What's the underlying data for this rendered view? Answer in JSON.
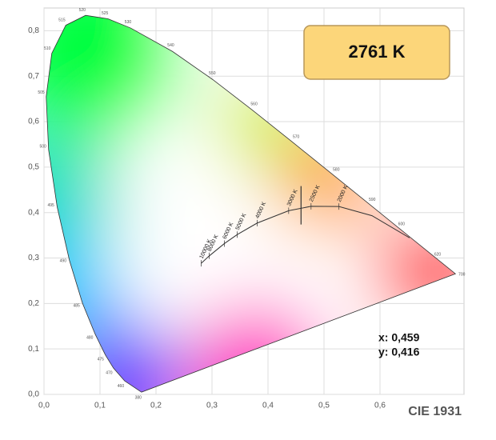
{
  "chart_data": {
    "type": "chromaticity",
    "title": "CIE 1931",
    "xlim": [
      0,
      0.75
    ],
    "ylim": [
      0,
      0.85
    ],
    "xticks": [
      {
        "value": 0,
        "label": "0,0"
      },
      {
        "value": 0.1,
        "label": "0,1"
      },
      {
        "value": 0.2,
        "label": "0,2"
      },
      {
        "value": 0.3,
        "label": "0,3"
      },
      {
        "value": 0.4,
        "label": "0,4"
      },
      {
        "value": 0.5,
        "label": "0,5"
      },
      {
        "value": 0.6,
        "label": "0,6"
      }
    ],
    "yticks": [
      {
        "value": 0,
        "label": "0,0"
      },
      {
        "value": 0.1,
        "label": "0,1"
      },
      {
        "value": 0.2,
        "label": "0,2"
      },
      {
        "value": 0.3,
        "label": "0,3"
      },
      {
        "value": 0.4,
        "label": "0,4"
      },
      {
        "value": 0.5,
        "label": "0,5"
      },
      {
        "value": 0.6,
        "label": "0,6"
      },
      {
        "value": 0.7,
        "label": "0,7"
      },
      {
        "value": 0.8,
        "label": "0,8"
      }
    ],
    "grid": true,
    "locus": {
      "nm": [
        380,
        460,
        470,
        475,
        480,
        485,
        490,
        495,
        500,
        505,
        510,
        515,
        520,
        525,
        530,
        540,
        550,
        560,
        570,
        580,
        590,
        600,
        620,
        700
      ],
      "x": [
        0.1741,
        0.144,
        0.1241,
        0.1096,
        0.0913,
        0.0687,
        0.0454,
        0.0235,
        0.0082,
        0.0039,
        0.0139,
        0.0389,
        0.0743,
        0.1142,
        0.1547,
        0.2296,
        0.3016,
        0.3731,
        0.4441,
        0.5125,
        0.5752,
        0.627,
        0.6915,
        0.7347
      ],
      "y": [
        0.005,
        0.0297,
        0.0578,
        0.0868,
        0.1327,
        0.2007,
        0.295,
        0.4127,
        0.5384,
        0.6548,
        0.7502,
        0.812,
        0.8338,
        0.8262,
        0.8059,
        0.7543,
        0.6923,
        0.6245,
        0.5547,
        0.4866,
        0.4242,
        0.3725,
        0.3083,
        0.2653
      ]
    },
    "planckian": {
      "labels": [
        "10000 K",
        "8000 K",
        "6000 K",
        "5000 K",
        "4000 K",
        "3000 K",
        "2500 K",
        "2000 K",
        null,
        null
      ],
      "x": [
        0.2807,
        0.2952,
        0.3221,
        0.3451,
        0.3805,
        0.4369,
        0.4769,
        0.5267,
        0.5857,
        0.6528
      ],
      "y": [
        0.2884,
        0.3048,
        0.3318,
        0.3516,
        0.3768,
        0.4041,
        0.4137,
        0.4133,
        0.3931,
        0.3444
      ],
      "color": "#333333"
    },
    "point": {
      "x": 0.459,
      "y": 0.416,
      "x_label": "x: 0,459",
      "y_label": "y: 0,416",
      "color": "#333333"
    },
    "cct": 2761,
    "cct_label": "2761 K"
  }
}
